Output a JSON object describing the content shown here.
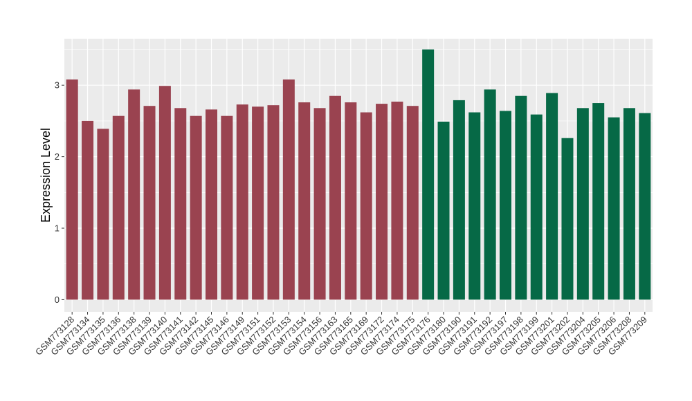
{
  "chart_data": {
    "type": "bar",
    "title": "",
    "xlabel": "",
    "ylabel": "Expression Level",
    "ylim": [
      -0.17,
      3.65
    ],
    "yticks": [
      0,
      1,
      2,
      3
    ],
    "grid": true,
    "legend": "none",
    "categories": [
      "GSM773128",
      "GSM773134",
      "GSM773135",
      "GSM773136",
      "GSM773138",
      "GSM773139",
      "GSM773140",
      "GSM773141",
      "GSM773142",
      "GSM773145",
      "GSM773146",
      "GSM773149",
      "GSM773151",
      "GSM773152",
      "GSM773153",
      "GSM773154",
      "GSM773156",
      "GSM773163",
      "GSM773165",
      "GSM773169",
      "GSM773172",
      "GSM773174",
      "GSM773175",
      "GSM773176",
      "GSM773180",
      "GSM773190",
      "GSM773191",
      "GSM773192",
      "GSM773197",
      "GSM773198",
      "GSM773199",
      "GSM773201",
      "GSM773202",
      "GSM773204",
      "GSM773205",
      "GSM773206",
      "GSM773208",
      "GSM773209"
    ],
    "values": [
      3.08,
      2.5,
      2.39,
      2.57,
      2.94,
      2.71,
      2.99,
      2.68,
      2.57,
      2.66,
      2.57,
      2.73,
      2.7,
      2.72,
      3.08,
      2.76,
      2.68,
      2.85,
      2.76,
      2.62,
      2.74,
      2.77,
      2.71,
      3.5,
      2.49,
      2.79,
      2.62,
      2.94,
      2.64,
      2.85,
      2.59,
      2.89,
      2.26,
      2.68,
      2.75,
      2.55,
      2.68,
      2.61
    ],
    "group_colors": [
      "#9a4350",
      "#9a4350",
      "#9a4350",
      "#9a4350",
      "#9a4350",
      "#9a4350",
      "#9a4350",
      "#9a4350",
      "#9a4350",
      "#9a4350",
      "#9a4350",
      "#9a4350",
      "#9a4350",
      "#9a4350",
      "#9a4350",
      "#9a4350",
      "#9a4350",
      "#9a4350",
      "#9a4350",
      "#9a4350",
      "#9a4350",
      "#9a4350",
      "#9a4350",
      "#066946",
      "#066946",
      "#066946",
      "#066946",
      "#066946",
      "#066946",
      "#066946",
      "#066946",
      "#066946",
      "#066946",
      "#066946",
      "#066946",
      "#066946",
      "#066946",
      "#066946"
    ],
    "panel_background": "#ebebeb",
    "grid_color": "#ffffff"
  }
}
